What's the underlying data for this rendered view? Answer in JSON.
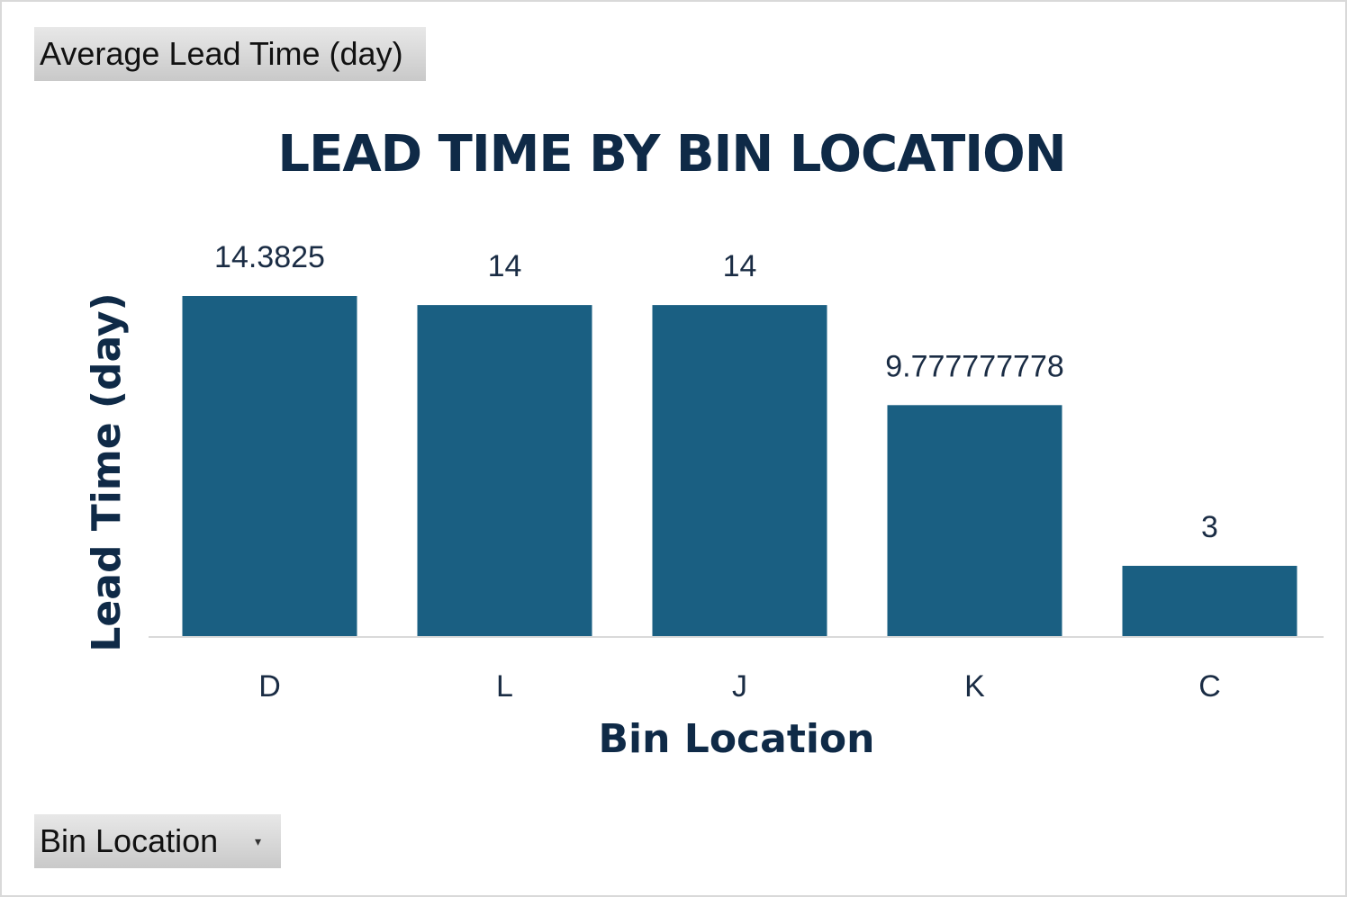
{
  "controls": {
    "value_field_label": "Average  Lead  Time  (day)",
    "axis_field_label": "Bin Location",
    "axis_field_icon": "dropdown-arrow-icon"
  },
  "chart_data": {
    "type": "bar",
    "title": "LEAD TIME BY BIN LOCATION",
    "xlabel": "Bin Location",
    "ylabel": "Lead Time (day)",
    "categories": [
      "D",
      "L",
      "J",
      "K",
      "C"
    ],
    "values": [
      14.3825,
      14,
      14,
      9.777777778,
      3
    ],
    "data_labels": [
      "14.3825",
      "14",
      "14",
      "9.777777778",
      "3"
    ],
    "ylim": [
      0,
      14.3825
    ],
    "grid": false,
    "legend": "none",
    "colors": {
      "bar": "#1a5f82",
      "text": "#0f2a47",
      "baseline": "#d9d9d9"
    }
  }
}
